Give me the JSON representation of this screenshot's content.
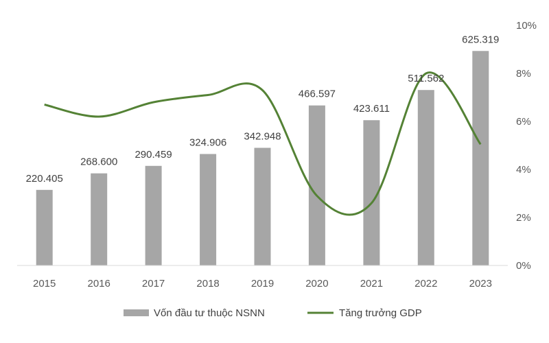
{
  "chart_data": {
    "type": "bar",
    "title": "",
    "xlabel": "",
    "ylabel": "",
    "categories": [
      "2015",
      "2016",
      "2017",
      "2018",
      "2019",
      "2020",
      "2021",
      "2022",
      "2023"
    ],
    "series": [
      {
        "name": "Vốn đầu tư thuộc NSNN",
        "type": "bar",
        "axis": "left",
        "color": "#a6a6a6",
        "values": [
          220405,
          268600,
          290459,
          324906,
          342948,
          466597,
          423611,
          511562,
          625319
        ],
        "labels": [
          "220.405",
          "268.600",
          "290.459",
          "324.906",
          "342.948",
          "466.597",
          "423.611",
          "511.562",
          "625.319"
        ]
      },
      {
        "name": "Tăng trưởng GDP",
        "type": "line",
        "axis": "right",
        "smooth": true,
        "color": "#548235",
        "values": [
          6.7,
          6.2,
          6.8,
          7.1,
          7.3,
          2.9,
          2.6,
          8.0,
          5.05
        ]
      }
    ],
    "y_left_range": [
      0,
      700000
    ],
    "y_right_range": [
      0,
      10
    ],
    "y_right_ticks": [
      "0%",
      "2%",
      "4%",
      "6%",
      "8%",
      "10%"
    ],
    "grid": false,
    "legend_position": "bottom"
  }
}
